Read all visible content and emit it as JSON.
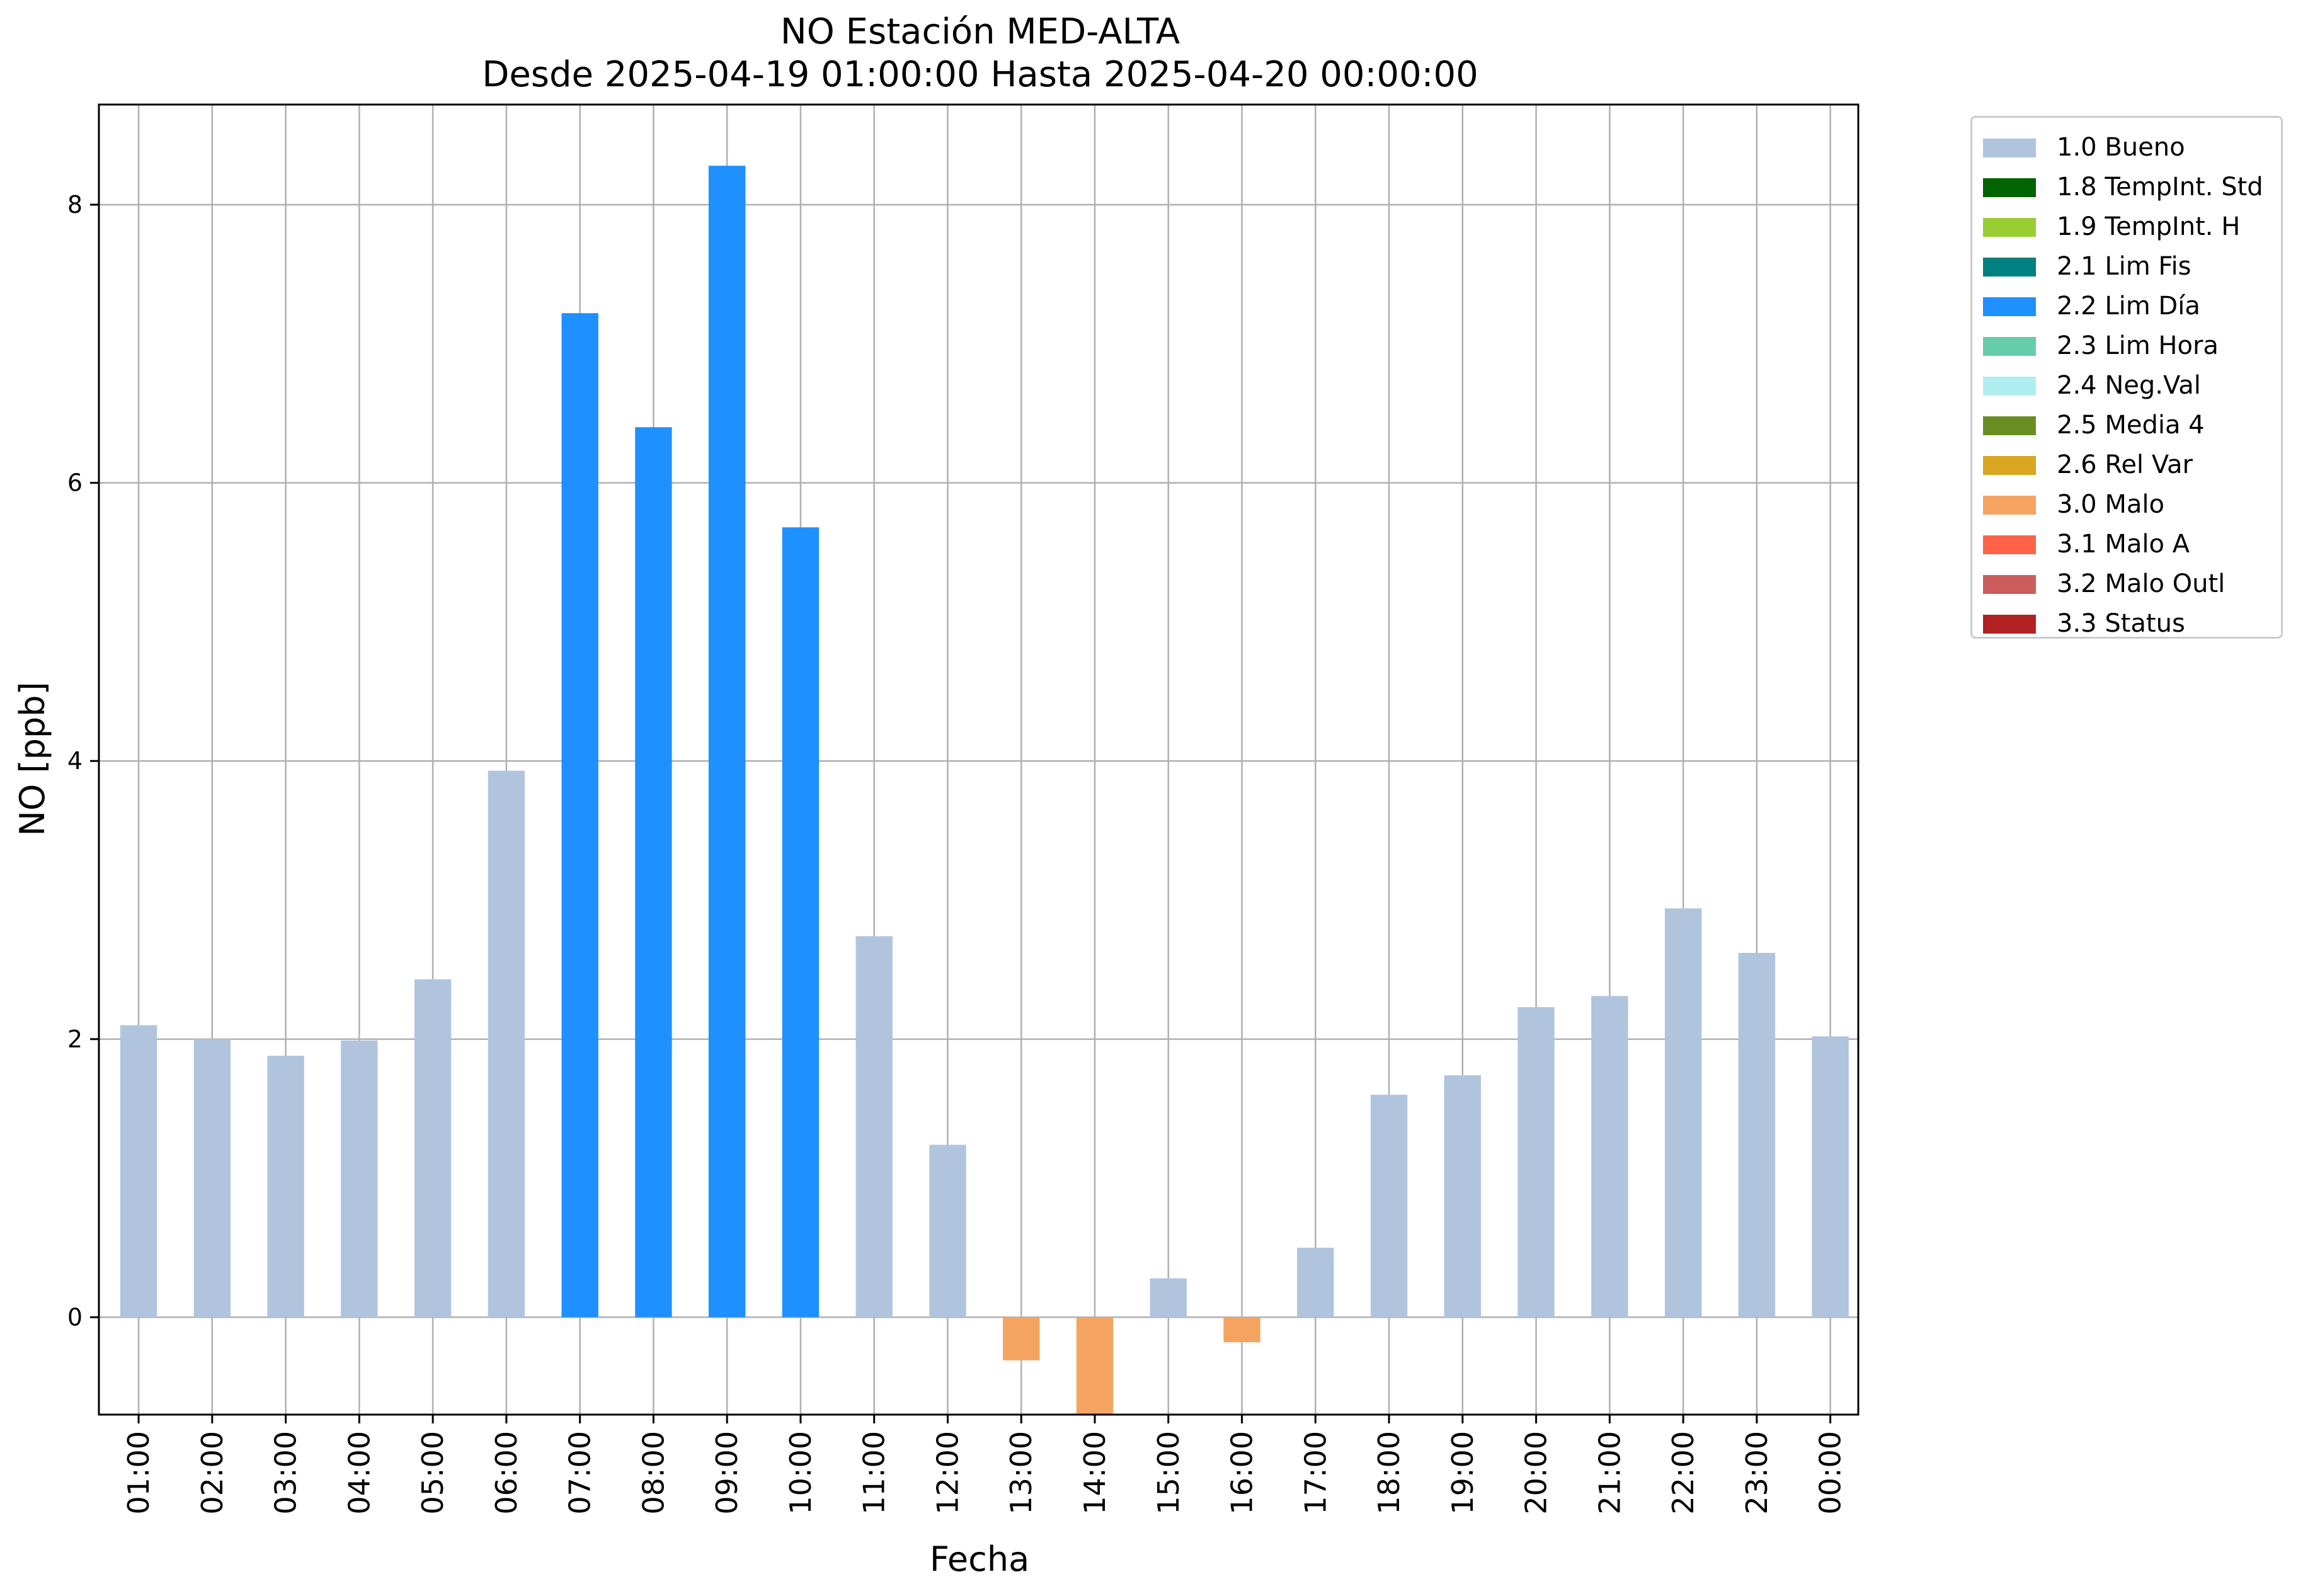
{
  "chart_data": {
    "type": "bar",
    "title": "NO Estación MED-ALTA",
    "subtitle": "Desde 2025-04-19 01:00:00 Hasta 2025-04-20 00:00:00",
    "xlabel": "Fecha",
    "ylabel": "NO [ppb]",
    "ylim": [
      -0.7,
      8.72
    ],
    "yticks": [
      0,
      2,
      4,
      6,
      8
    ],
    "grid": true,
    "legend_position": "outside-top-right",
    "categories": [
      "01:00",
      "02:00",
      "03:00",
      "04:00",
      "05:00",
      "06:00",
      "07:00",
      "08:00",
      "09:00",
      "10:00",
      "11:00",
      "12:00",
      "13:00",
      "14:00",
      "15:00",
      "16:00",
      "17:00",
      "18:00",
      "19:00",
      "20:00",
      "21:00",
      "22:00",
      "23:00",
      "00:00"
    ],
    "values": [
      2.1,
      2.0,
      1.88,
      1.99,
      2.43,
      3.93,
      7.22,
      6.4,
      8.28,
      5.68,
      2.74,
      1.24,
      -0.31,
      -0.7,
      0.28,
      -0.18,
      0.5,
      1.6,
      1.74,
      2.23,
      2.31,
      2.94,
      2.62,
      2.02
    ],
    "flags": [
      "1.0 Bueno",
      "1.0 Bueno",
      "1.0 Bueno",
      "1.0 Bueno",
      "1.0 Bueno",
      "1.0 Bueno",
      "2.2 Lim Día",
      "2.2 Lim Día",
      "2.2 Lim Día",
      "2.2 Lim Día",
      "1.0 Bueno",
      "1.0 Bueno",
      "3.0 Malo",
      "3.0 Malo",
      "1.0 Bueno",
      "3.0 Malo",
      "1.0 Bueno",
      "1.0 Bueno",
      "1.0 Bueno",
      "1.0 Bueno",
      "1.0 Bueno",
      "1.0 Bueno",
      "1.0 Bueno",
      "1.0 Bueno"
    ],
    "legend": [
      {
        "label": "1.0 Bueno",
        "color": "#b0c4de"
      },
      {
        "label": "1.8 TempInt. Std",
        "color": "#006400"
      },
      {
        "label": "1.9 TempInt. H",
        "color": "#9acd32"
      },
      {
        "label": "2.1 Lim Fis",
        "color": "#008080"
      },
      {
        "label": "2.2 Lim Día",
        "color": "#1e90ff"
      },
      {
        "label": "2.3 Lim Hora",
        "color": "#66cdaa"
      },
      {
        "label": "2.4 Neg.Val",
        "color": "#afeeee"
      },
      {
        "label": "2.5 Media 4",
        "color": "#6b8e23"
      },
      {
        "label": "2.6 Rel Var",
        "color": "#daa520"
      },
      {
        "label": "3.0 Malo",
        "color": "#f4a460"
      },
      {
        "label": "3.1 Malo A",
        "color": "#ff6347"
      },
      {
        "label": "3.2 Malo Outl",
        "color": "#cd5c5c"
      },
      {
        "label": "3.3 Status",
        "color": "#b22222"
      }
    ]
  }
}
